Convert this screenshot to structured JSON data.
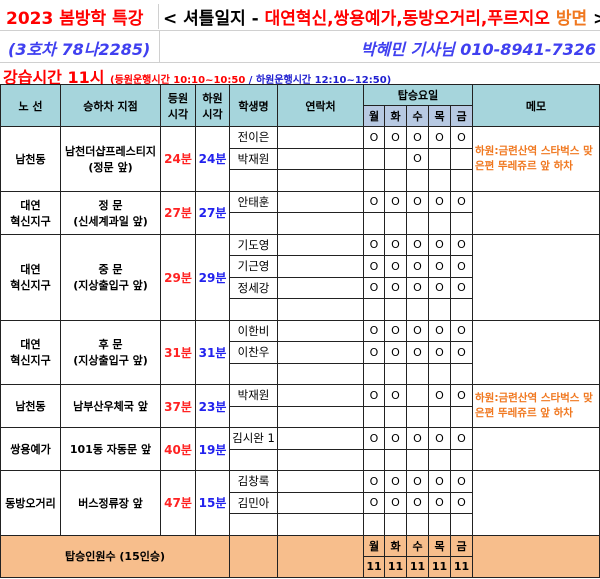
{
  "title": {
    "main": "2023 봄방학 특강",
    "sep": "< 셔틀일지 - ",
    "areas": "대연혁신,쌍용예가,동방오거리,푸르지오",
    "dir": "방면",
    "close": ">"
  },
  "vehicle": "(3호차 78나2285)",
  "driver": "박혜민 기사님  010-8941-7326",
  "session": {
    "label": "강습시간  11시",
    "am": "(등원운행시간 10:10~10:50",
    "slash": " / ",
    "pm": "하원운행시간 12:10~12:50)"
  },
  "headers": {
    "route": "노 선",
    "stop": "승하차 지점",
    "am": "등원 시각",
    "pm": "하원 시각",
    "name": "학생명",
    "contact": "연락처",
    "days_label": "탑승요일",
    "days": [
      "월",
      "화",
      "수",
      "목",
      "금"
    ],
    "memo": "메모"
  },
  "groups": [
    {
      "route": [
        "남천동"
      ],
      "stop": [
        "남천더샵프레스티지",
        "(정문 앞)"
      ],
      "am": "24분",
      "pm": "24분",
      "memo": "하원:금련산역 스타벅스 맞은편 뚜레쥬르 앞 하차",
      "students": [
        {
          "name": "전이은",
          "days": [
            "O",
            "O",
            "O",
            "O",
            "O"
          ]
        },
        {
          "name": "박재원",
          "days": [
            "",
            "",
            "O",
            "",
            ""
          ]
        },
        {
          "name": "",
          "days": [
            "",
            "",
            "",
            "",
            ""
          ]
        }
      ]
    },
    {
      "route": [
        "대연",
        "혁신지구"
      ],
      "stop": [
        "정 문",
        "(신세계과일 앞)"
      ],
      "am": "27분",
      "pm": "27분",
      "memo": "",
      "students": [
        {
          "name": "안태훈",
          "days": [
            "O",
            "O",
            "O",
            "O",
            "O"
          ]
        },
        {
          "name": "",
          "days": [
            "",
            "",
            "",
            "",
            ""
          ]
        }
      ]
    },
    {
      "route": [
        "대연",
        "혁신지구"
      ],
      "stop": [
        "중 문",
        "(지상출입구 앞)"
      ],
      "am": "29분",
      "pm": "29분",
      "memo": "",
      "students": [
        {
          "name": "기도영",
          "days": [
            "O",
            "O",
            "O",
            "O",
            "O"
          ]
        },
        {
          "name": "기근영",
          "days": [
            "O",
            "O",
            "O",
            "O",
            "O"
          ]
        },
        {
          "name": "정세강",
          "days": [
            "O",
            "O",
            "O",
            "O",
            "O"
          ]
        },
        {
          "name": "",
          "days": [
            "",
            "",
            "",
            "",
            ""
          ]
        }
      ]
    },
    {
      "route": [
        "대연",
        "혁신지구"
      ],
      "stop": [
        "후 문",
        "(지상출입구 앞)"
      ],
      "am": "31분",
      "pm": "31분",
      "memo": "",
      "students": [
        {
          "name": "이한비",
          "days": [
            "O",
            "O",
            "O",
            "O",
            "O"
          ]
        },
        {
          "name": "이찬우",
          "days": [
            "O",
            "O",
            "O",
            "O",
            "O"
          ]
        },
        {
          "name": "",
          "days": [
            "",
            "",
            "",
            "",
            ""
          ]
        }
      ]
    },
    {
      "route": [
        "남천동"
      ],
      "stop": [
        "남부산우체국 앞"
      ],
      "am": "37분",
      "pm": "23분",
      "memo": "하원:금련산역 스타벅스 맞은편 뚜레쥬르 앞 하차",
      "students": [
        {
          "name": "박재원",
          "days": [
            "O",
            "O",
            "",
            "O",
            "O"
          ]
        },
        {
          "name": "",
          "days": [
            "",
            "",
            "",
            "",
            ""
          ]
        }
      ]
    },
    {
      "route": [
        "쌍용예가"
      ],
      "stop": [
        "101동 자동문 앞"
      ],
      "am": "40분",
      "pm": "19분",
      "memo": "",
      "students": [
        {
          "name": "김시완 1",
          "days": [
            "O",
            "O",
            "O",
            "O",
            "O"
          ]
        },
        {
          "name": "",
          "days": [
            "",
            "",
            "",
            "",
            ""
          ]
        }
      ]
    },
    {
      "route": [
        "동방오거리"
      ],
      "stop": [
        "버스정류장 앞"
      ],
      "am": "47분",
      "pm": "15분",
      "memo": "",
      "students": [
        {
          "name": "김창록",
          "days": [
            "O",
            "O",
            "O",
            "O",
            "O"
          ]
        },
        {
          "name": "김민아",
          "days": [
            "O",
            "O",
            "O",
            "O",
            "O"
          ]
        },
        {
          "name": "",
          "days": [
            "",
            "",
            "",
            "",
            ""
          ]
        }
      ]
    }
  ],
  "footer": {
    "label": "탑승인원수 (15인승)",
    "days": [
      "월",
      "화",
      "수",
      "목",
      "금"
    ],
    "counts": [
      "11",
      "11",
      "11",
      "11",
      "11"
    ]
  }
}
